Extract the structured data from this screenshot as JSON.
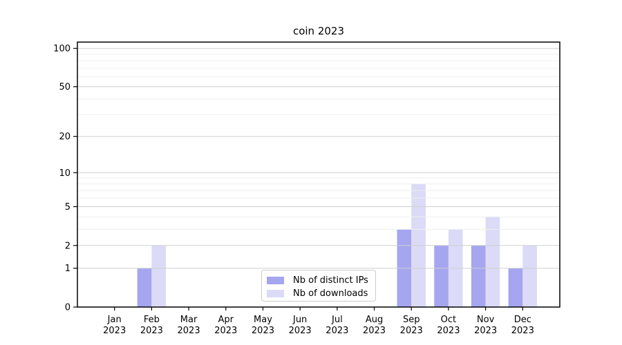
{
  "chart_data": {
    "type": "bar",
    "title": "coin 2023",
    "categories": [
      "Jan",
      "Feb",
      "Mar",
      "Apr",
      "May",
      "Jun",
      "Jul",
      "Aug",
      "Sep",
      "Oct",
      "Nov",
      "Dec"
    ],
    "year_label": "2023",
    "series": [
      {
        "name": "Nb of distinct IPs",
        "color": "#a5a5f0",
        "values": [
          0,
          1,
          0,
          0,
          0,
          0,
          0,
          0,
          3,
          2,
          2,
          1
        ]
      },
      {
        "name": "Nb of downloads",
        "color": "#dbdbf8",
        "values": [
          0,
          2,
          0,
          0,
          0,
          0,
          0,
          0,
          8,
          3,
          4,
          2
        ]
      }
    ],
    "xlabel": "",
    "ylabel": "",
    "y_scale": "log10(1+x)",
    "y_ticks": [
      0,
      1,
      2,
      5,
      10,
      20,
      50,
      100
    ],
    "y_minor_gridlines": [
      3,
      4,
      6,
      7,
      8,
      9,
      30,
      40,
      60,
      70,
      80,
      90
    ],
    "ylim": [
      0,
      112
    ],
    "grid": true,
    "legend_position": "lower center"
  },
  "colors": {
    "background": "#ffffff",
    "major_grid": "#cfcfcf",
    "minor_grid": "#efefef",
    "spine": "#000000",
    "tick": "#000000",
    "text": "#000000",
    "legend_border": "#cccccc"
  }
}
